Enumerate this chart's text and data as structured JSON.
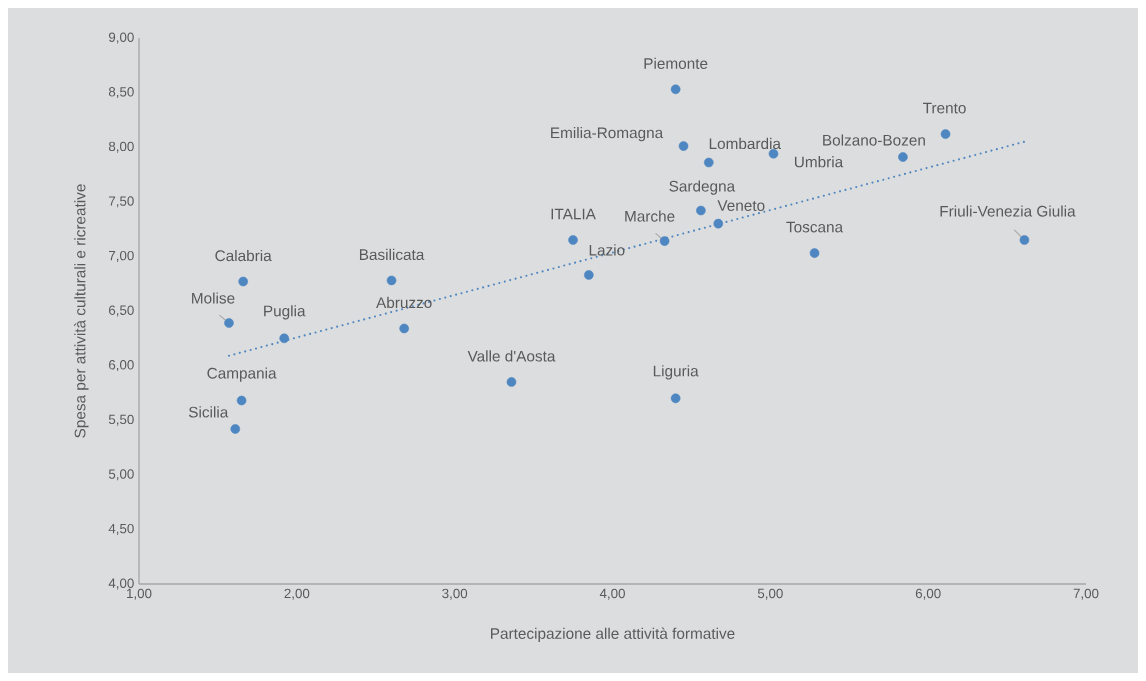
{
  "chart_data": {
    "type": "scatter",
    "xlabel": "Partecipazione alle attività formative",
    "ylabel": "Spesa per attività culturali e ricreative",
    "xlim": [
      1,
      7
    ],
    "ylim": [
      4,
      9
    ],
    "xticks": [
      {
        "value": 1,
        "label": "1,00"
      },
      {
        "value": 2,
        "label": "2,00"
      },
      {
        "value": 3,
        "label": "3,00"
      },
      {
        "value": 4,
        "label": "4,00"
      },
      {
        "value": 5,
        "label": "5,00"
      },
      {
        "value": 6,
        "label": "6,00"
      },
      {
        "value": 7,
        "label": "7,00"
      }
    ],
    "yticks": [
      {
        "value": 4,
        "label": "4,00"
      },
      {
        "value": 4.5,
        "label": "4,50"
      },
      {
        "value": 5,
        "label": "5,00"
      },
      {
        "value": 5.5,
        "label": "5,50"
      },
      {
        "value": 6,
        "label": "6,00"
      },
      {
        "value": 6.5,
        "label": "6,50"
      },
      {
        "value": 7,
        "label": "7,00"
      },
      {
        "value": 7.5,
        "label": "7,50"
      },
      {
        "value": 8,
        "label": "8,00"
      },
      {
        "value": 8.5,
        "label": "8,50"
      },
      {
        "value": 9,
        "label": "9,00"
      }
    ],
    "grid": false,
    "series": [
      {
        "color": "#4e86c1",
        "marker": "circle",
        "x": [
          1.66,
          1.57,
          1.92,
          1.65,
          1.61,
          2.6,
          2.68,
          3.36,
          3.75,
          3.85,
          4.4,
          4.45,
          4.61,
          5.02,
          4.56,
          4.67,
          4.33,
          5.28,
          4.4,
          5.84,
          6.11,
          6.61
        ],
        "values": [
          6.77,
          6.39,
          6.25,
          5.68,
          5.42,
          6.78,
          6.34,
          5.85,
          7.15,
          6.83,
          8.53,
          8.01,
          7.86,
          7.94,
          7.42,
          7.3,
          7.14,
          7.03,
          5.7,
          7.91,
          8.12,
          7.15
        ]
      },
      {
        "type": "line",
        "color": "#4e86c1",
        "line_style": "dotted",
        "marker": "none",
        "x": [
          1.57,
          6.61
        ],
        "values": [
          6.09,
          8.05
        ]
      }
    ],
    "annotations": [
      {
        "text": "Calabria",
        "x": 1.66,
        "y": 6.77
      },
      {
        "text": "Molise",
        "x": 1.57,
        "y": 6.39
      },
      {
        "text": "Puglia",
        "x": 1.92,
        "y": 6.25
      },
      {
        "text": "Campania",
        "x": 1.65,
        "y": 5.68
      },
      {
        "text": "Sicilia",
        "x": 1.61,
        "y": 5.42
      },
      {
        "text": "Basilicata",
        "x": 2.6,
        "y": 6.78
      },
      {
        "text": "Abruzzo",
        "x": 2.68,
        "y": 6.34
      },
      {
        "text": "Valle d'Aosta",
        "x": 3.36,
        "y": 5.85
      },
      {
        "text": "ITALIA",
        "x": 3.75,
        "y": 7.15
      },
      {
        "text": "Lazio",
        "x": 3.85,
        "y": 6.83
      },
      {
        "text": "Piemonte",
        "x": 4.4,
        "y": 8.53
      },
      {
        "text": "Emilia-Romagna",
        "x": 4.45,
        "y": 8.01
      },
      {
        "text": "Lombardia",
        "x": 4.61,
        "y": 7.86
      },
      {
        "text": "Umbria",
        "x": 5.02,
        "y": 7.94
      },
      {
        "text": "Sardegna",
        "x": 4.56,
        "y": 7.42
      },
      {
        "text": "Veneto",
        "x": 4.67,
        "y": 7.3
      },
      {
        "text": "Marche",
        "x": 4.33,
        "y": 7.14
      },
      {
        "text": "Toscana",
        "x": 5.28,
        "y": 7.03
      },
      {
        "text": "Liguria",
        "x": 4.4,
        "y": 5.7
      },
      {
        "text": "Bolzano-Bozen",
        "x": 5.84,
        "y": 7.91
      },
      {
        "text": "Trento",
        "x": 6.11,
        "y": 8.12
      },
      {
        "text": "Friuli-Venezia  Giulia",
        "x": 6.61,
        "y": 7.15
      }
    ]
  }
}
